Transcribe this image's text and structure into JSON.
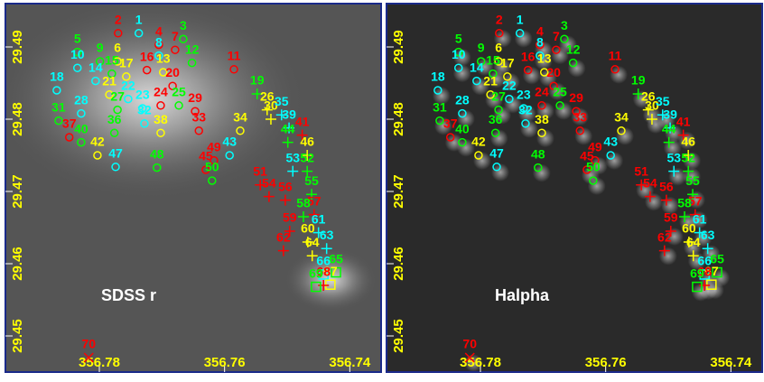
{
  "panels": [
    {
      "label": "SDSS r"
    },
    {
      "label": "Halpha"
    }
  ],
  "axes": {
    "xlim": [
      356.795,
      356.735
    ],
    "ylim": [
      29.445,
      29.496
    ],
    "xticks": [
      356.78,
      356.76,
      356.74
    ],
    "yticks": [
      29.45,
      29.46,
      29.47,
      29.48,
      29.49
    ]
  },
  "regions": [
    {
      "label": "1",
      "ra": 356.7737,
      "dec": 29.4919,
      "color": "cyan",
      "marker": "circle"
    },
    {
      "label": "2",
      "ra": 356.777,
      "dec": 29.4919,
      "color": "red",
      "marker": "circle"
    },
    {
      "label": "3",
      "ra": 356.7666,
      "dec": 29.4911,
      "color": "lime",
      "marker": "circle"
    },
    {
      "label": "4",
      "ra": 356.7705,
      "dec": 29.4903,
      "color": "red",
      "marker": "circle"
    },
    {
      "label": "5",
      "ra": 356.7835,
      "dec": 29.4893,
      "color": "lime",
      "marker": "circle"
    },
    {
      "label": "6",
      "ra": 356.7771,
      "dec": 29.488,
      "color": "yellow",
      "marker": "circle"
    },
    {
      "label": "7",
      "ra": 356.7679,
      "dec": 29.4896,
      "color": "red",
      "marker": "circle"
    },
    {
      "label": "8",
      "ra": 356.7705,
      "dec": 29.4888,
      "color": "cyan",
      "marker": "circle"
    },
    {
      "label": "9",
      "ra": 356.7799,
      "dec": 29.488,
      "color": "lime",
      "marker": "circle"
    },
    {
      "label": "10",
      "ra": 356.7835,
      "dec": 29.4871,
      "color": "cyan",
      "marker": "circle"
    },
    {
      "label": "11",
      "ra": 356.7585,
      "dec": 29.4869,
      "color": "red",
      "marker": "circle"
    },
    {
      "label": "12",
      "ra": 356.7652,
      "dec": 29.4878,
      "color": "lime",
      "marker": "circle"
    },
    {
      "label": "13",
      "ra": 356.7698,
      "dec": 29.4865,
      "color": "yellow",
      "marker": "circle"
    },
    {
      "label": "14",
      "ra": 356.7806,
      "dec": 29.4853,
      "color": "cyan",
      "marker": "circle"
    },
    {
      "label": "15",
      "ra": 356.778,
      "dec": 29.4863,
      "color": "lime",
      "marker": "circle"
    },
    {
      "label": "16",
      "ra": 356.7724,
      "dec": 29.4868,
      "color": "red",
      "marker": "circle"
    },
    {
      "label": "17",
      "ra": 356.7757,
      "dec": 29.4859,
      "color": "yellow",
      "marker": "circle"
    },
    {
      "label": "18",
      "ra": 356.7868,
      "dec": 29.484,
      "color": "cyan",
      "marker": "circle"
    },
    {
      "label": "19",
      "ra": 356.7548,
      "dec": 29.4835,
      "color": "lime",
      "marker": "plus"
    },
    {
      "label": "20",
      "ra": 356.7683,
      "dec": 29.4846,
      "color": "red",
      "marker": "circle"
    },
    {
      "label": "21",
      "ra": 356.7784,
      "dec": 29.4834,
      "color": "yellow",
      "marker": "circle"
    },
    {
      "label": "22",
      "ra": 356.7754,
      "dec": 29.4828,
      "color": "cyan",
      "marker": "circle"
    },
    {
      "label": "23",
      "ra": 356.7731,
      "dec": 29.4815,
      "color": "cyan",
      "marker": "circle"
    },
    {
      "label": "24",
      "ra": 356.7702,
      "dec": 29.4819,
      "color": "red",
      "marker": "circle"
    },
    {
      "label": "25",
      "ra": 356.7673,
      "dec": 29.4819,
      "color": "lime",
      "marker": "circle"
    },
    {
      "label": "26",
      "ra": 356.7532,
      "dec": 29.4813,
      "color": "yellow",
      "marker": "plus"
    },
    {
      "label": "27",
      "ra": 356.7771,
      "dec": 29.4813,
      "color": "lime",
      "marker": "circle"
    },
    {
      "label": "28",
      "ra": 356.7829,
      "dec": 29.4808,
      "color": "cyan",
      "marker": "circle"
    },
    {
      "label": "29",
      "ra": 356.7647,
      "dec": 29.4811,
      "color": "red",
      "marker": "circle"
    },
    {
      "label": "30",
      "ra": 356.7526,
      "dec": 29.48,
      "color": "yellow",
      "marker": "plus"
    },
    {
      "label": "31",
      "ra": 356.7865,
      "dec": 29.4798,
      "color": "lime",
      "marker": "circle"
    },
    {
      "label": "32",
      "ra": 356.7728,
      "dec": 29.4794,
      "color": "cyan",
      "marker": "circle"
    },
    {
      "label": "33",
      "ra": 356.7641,
      "dec": 29.4784,
      "color": "red",
      "marker": "circle"
    },
    {
      "label": "34",
      "ra": 356.7575,
      "dec": 29.4784,
      "color": "yellow",
      "marker": "circle"
    },
    {
      "label": "35",
      "ra": 356.7509,
      "dec": 29.4806,
      "color": "cyan",
      "marker": "plus"
    },
    {
      "label": "36",
      "ra": 356.7776,
      "dec": 29.4781,
      "color": "lime",
      "marker": "circle"
    },
    {
      "label": "37",
      "ra": 356.7848,
      "dec": 29.4775,
      "color": "red",
      "marker": "circle"
    },
    {
      "label": "38",
      "ra": 356.7702,
      "dec": 29.4781,
      "color": "yellow",
      "marker": "circle"
    },
    {
      "label": "39",
      "ra": 356.7497,
      "dec": 29.4788,
      "color": "cyan",
      "marker": "plus"
    },
    {
      "label": "40",
      "ra": 356.7829,
      "dec": 29.4768,
      "color": "lime",
      "marker": "circle"
    },
    {
      "label": "41",
      "ra": 356.7476,
      "dec": 29.4778,
      "color": "red",
      "marker": "plus"
    },
    {
      "label": "42",
      "ra": 356.7803,
      "dec": 29.475,
      "color": "yellow",
      "marker": "circle"
    },
    {
      "label": "43",
      "ra": 356.7592,
      "dec": 29.475,
      "color": "cyan",
      "marker": "circle"
    },
    {
      "label": "44",
      "ra": 356.7499,
      "dec": 29.4768,
      "color": "lime",
      "marker": "plus"
    },
    {
      "label": "45",
      "ra": 356.763,
      "dec": 29.473,
      "color": "red",
      "marker": "circle"
    },
    {
      "label": "46",
      "ra": 356.7468,
      "dec": 29.475,
      "color": "yellow",
      "marker": "plus"
    },
    {
      "label": "47",
      "ra": 356.7774,
      "dec": 29.4734,
      "color": "cyan",
      "marker": "circle"
    },
    {
      "label": "48",
      "ra": 356.7708,
      "dec": 29.4733,
      "color": "lime",
      "marker": "circle"
    },
    {
      "label": "49",
      "ra": 356.7617,
      "dec": 29.4743,
      "color": "red",
      "marker": "circle"
    },
    {
      "label": "50",
      "ra": 356.762,
      "dec": 29.4715,
      "color": "lime",
      "marker": "circle"
    },
    {
      "label": "51",
      "ra": 356.7543,
      "dec": 29.4709,
      "color": "red",
      "marker": "plus"
    },
    {
      "label": "52",
      "ra": 356.7468,
      "dec": 29.4728,
      "color": "lime",
      "marker": "plus"
    },
    {
      "label": "53",
      "ra": 356.7491,
      "dec": 29.4728,
      "color": "cyan",
      "marker": "plus"
    },
    {
      "label": "54",
      "ra": 356.7529,
      "dec": 29.4693,
      "color": "red",
      "marker": "plus"
    },
    {
      "label": "55",
      "ra": 356.7461,
      "dec": 29.4696,
      "color": "lime",
      "marker": "plus"
    },
    {
      "label": "56",
      "ra": 356.7503,
      "dec": 29.4688,
      "color": "red",
      "marker": "plus"
    },
    {
      "label": "57",
      "ra": 356.7457,
      "dec": 29.4668,
      "color": "red",
      "marker": "plus"
    },
    {
      "label": "58",
      "ra": 356.7474,
      "dec": 29.4665,
      "color": "lime",
      "marker": "plus"
    },
    {
      "label": "59",
      "ra": 356.7496,
      "dec": 29.4645,
      "color": "red",
      "marker": "plus"
    },
    {
      "label": "60",
      "ra": 356.7467,
      "dec": 29.463,
      "color": "yellow",
      "marker": "plus"
    },
    {
      "label": "61",
      "ra": 356.745,
      "dec": 29.4643,
      "color": "cyan",
      "marker": "plus"
    },
    {
      "label": "62",
      "ra": 356.7506,
      "dec": 29.4618,
      "color": "red",
      "marker": "plus"
    },
    {
      "label": "63",
      "ra": 356.7437,
      "dec": 29.4621,
      "color": "cyan",
      "marker": "plus"
    },
    {
      "label": "64",
      "ra": 356.746,
      "dec": 29.4611,
      "color": "yellow",
      "marker": "plus"
    },
    {
      "label": "65",
      "ra": 356.7422,
      "dec": 29.4588,
      "color": "lime",
      "marker": "square"
    },
    {
      "label": "66",
      "ra": 356.7442,
      "dec": 29.4585,
      "color": "cyan",
      "marker": "square"
    },
    {
      "label": "67",
      "ra": 356.7431,
      "dec": 29.4571,
      "color": "yellow",
      "marker": "square"
    },
    {
      "label": "68",
      "ra": 356.7442,
      "dec": 29.457,
      "color": "red",
      "marker": "plus"
    },
    {
      "label": "69",
      "ra": 356.7454,
      "dec": 29.4568,
      "color": "lime",
      "marker": "square"
    },
    {
      "label": "70",
      "ra": 356.7817,
      "dec": 29.447,
      "color": "red",
      "marker": "x"
    }
  ]
}
